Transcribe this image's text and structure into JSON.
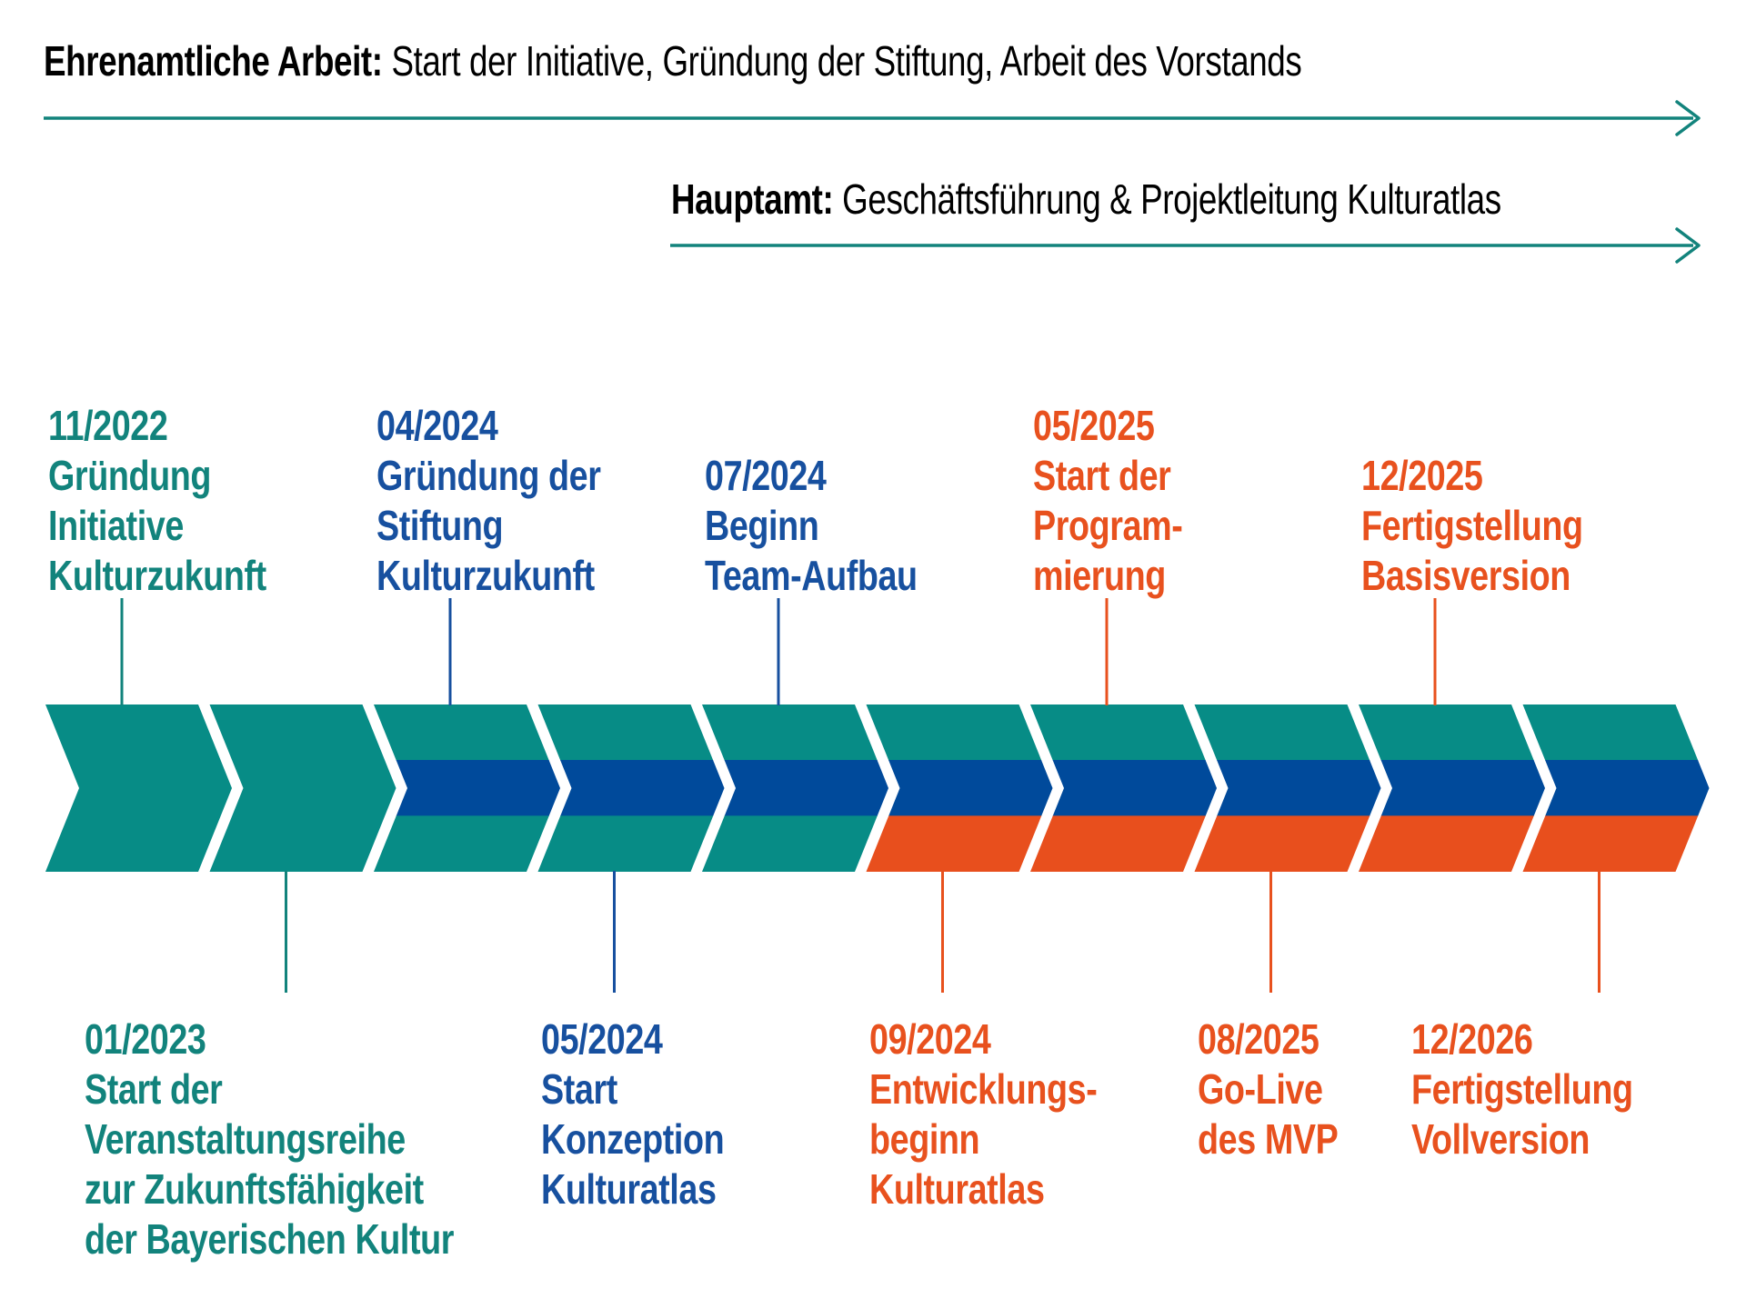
{
  "colors": {
    "teal": "#078C86",
    "blue": "#004A9B",
    "orange": "#E84F1D",
    "teal_text": "#12837C",
    "blue_text": "#17509F",
    "orange_text": "#E8511E"
  },
  "phase_arrows": [
    {
      "id": "ehrenamt",
      "bold": "Ehrenamtliche Arbeit:",
      "rest": " Start der Initiative, Gründung der Stiftung, Arbeit des Vorstands"
    },
    {
      "id": "hauptamt",
      "bold": "Hauptamt:",
      "rest": " Geschäftsführung & Projektleitung Kulturatlas"
    }
  ],
  "chevrons": [
    {
      "bands": [
        "teal"
      ]
    },
    {
      "bands": [
        "teal"
      ]
    },
    {
      "bands": [
        "teal",
        "blue",
        "teal"
      ]
    },
    {
      "bands": [
        "teal",
        "blue",
        "teal"
      ]
    },
    {
      "bands": [
        "teal",
        "blue",
        "teal"
      ]
    },
    {
      "bands": [
        "teal",
        "blue",
        "orange"
      ]
    },
    {
      "bands": [
        "teal",
        "blue",
        "orange"
      ]
    },
    {
      "bands": [
        "teal",
        "blue",
        "orange"
      ]
    },
    {
      "bands": [
        "teal",
        "blue",
        "orange"
      ]
    },
    {
      "bands": [
        "teal",
        "blue",
        "orange"
      ]
    }
  ],
  "milestones": [
    {
      "date": "11/2022",
      "lines": [
        "Gründung",
        "Initiative",
        "Kulturzukunft"
      ],
      "color": "teal",
      "side": "top",
      "chevron": 1
    },
    {
      "date": "01/2023",
      "lines": [
        "Start der",
        "Veranstaltungsreihe",
        "zur Zukunftsfähigkeit",
        "der Bayerischen Kultur"
      ],
      "color": "teal",
      "side": "bottom",
      "chevron": 2
    },
    {
      "date": "04/2024",
      "lines": [
        "Gründung der",
        "Stiftung",
        "Kulturzukunft"
      ],
      "color": "blue",
      "side": "top",
      "chevron": 3
    },
    {
      "date": "05/2024",
      "lines": [
        "Start",
        "Konzeption",
        "Kulturatlas"
      ],
      "color": "blue",
      "side": "bottom",
      "chevron": 4
    },
    {
      "date": "07/2024",
      "lines": [
        "Beginn",
        "Team-Aufbau"
      ],
      "color": "blue",
      "side": "top",
      "chevron": 5
    },
    {
      "date": "09/2024",
      "lines": [
        "Entwicklungs-",
        "beginn",
        "Kulturatlas"
      ],
      "color": "orange",
      "side": "bottom",
      "chevron": 6
    },
    {
      "date": "05/2025",
      "lines": [
        "Start der",
        "Program-",
        "mierung"
      ],
      "color": "orange",
      "side": "top",
      "chevron": 7
    },
    {
      "date": "08/2025",
      "lines": [
        "Go-Live",
        "des MVP"
      ],
      "color": "orange",
      "side": "bottom",
      "chevron": 8
    },
    {
      "date": "12/2025",
      "lines": [
        "Fertigstellung",
        "Basisversion"
      ],
      "color": "orange",
      "side": "top",
      "chevron": 9
    },
    {
      "date": "12/2026",
      "lines": [
        "Fertigstellung",
        "Vollversion"
      ],
      "color": "orange",
      "side": "bottom",
      "chevron": 10
    }
  ]
}
